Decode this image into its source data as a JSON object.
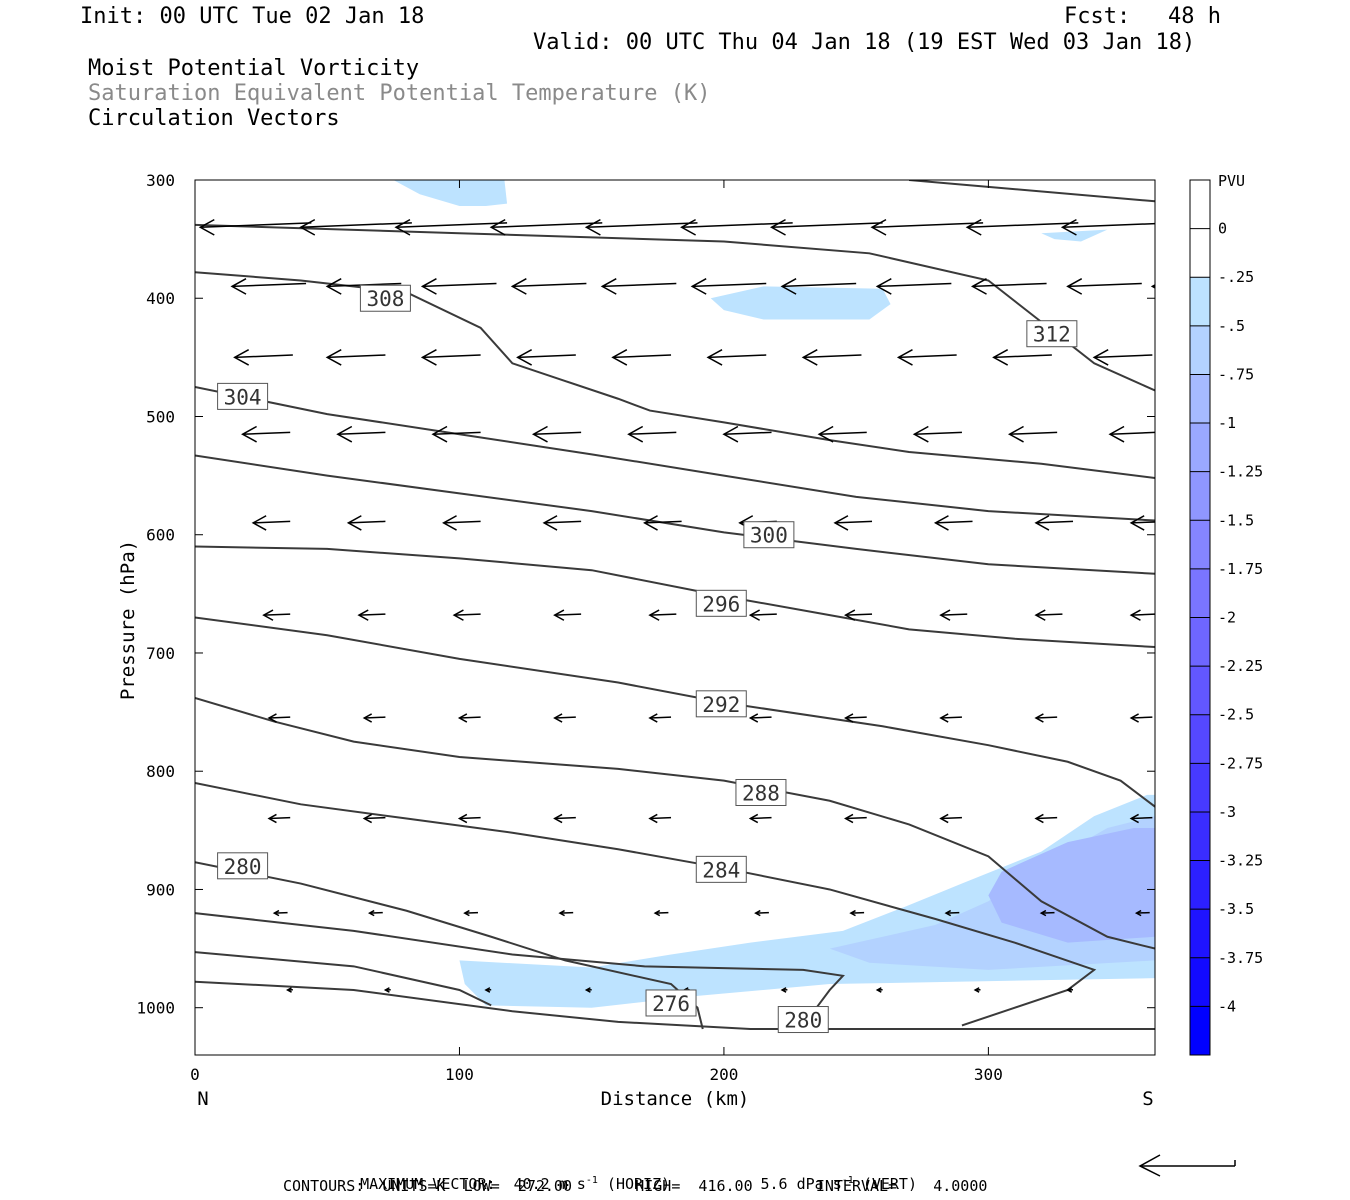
{
  "header": {
    "init": "Init: 00 UTC Tue 02 Jan 18",
    "fcst_label": "Fcst:",
    "fcst_value": "48 h",
    "valid": "Valid: 00 UTC Thu 04 Jan 18 (19 EST Wed 03 Jan 18)",
    "line1": "Moist Potential Vorticity",
    "line2": "Saturation Equivalent Potential Temperature (K)",
    "line3": "Circulation Vectors"
  },
  "footer": {
    "max_vector_label": "MAXIMUM VECTOR:",
    "max_vector_horiz_value": "40.2",
    "max_vector_horiz_unit": "m s",
    "max_vector_horiz_exp": "-1",
    "max_vector_horiz_tag": "(HORIZ)",
    "max_vector_vert_value": "5.6",
    "max_vector_vert_unit": "dPa s",
    "max_vector_vert_exp": "-1",
    "max_vector_vert_tag": "(VERT)",
    "contours": "CONTOURS:  UNITS=K  LOW=  272.00       HIGH=  416.00       INTERVAL=    4.0000"
  },
  "colors": {
    "contour": "#3a3a3a",
    "vector": "#000000",
    "pv_shade_1": "#bde3ff",
    "pv_shade_2": "#b3d2ff",
    "pv_shade_3": "#a6baff",
    "pv_shade_4": "#9aa8ff"
  },
  "chart_data": {
    "type": "cross-section",
    "xlabel": "Distance (km)",
    "ylabel": "Pressure (hPa)",
    "xlim": [
      0,
      363
    ],
    "ylim": [
      300,
      1040
    ],
    "x_ticks": [
      0,
      100,
      200,
      300
    ],
    "y_ticks": [
      300,
      400,
      500,
      600,
      700,
      800,
      900,
      1000
    ],
    "x_end_labels": {
      "left": "N",
      "right": "S"
    },
    "colorbar": {
      "title": "PVU",
      "levels": [
        "0",
        "-.25",
        "-.5",
        "-.75",
        "-1",
        "-1.25",
        "-1.5",
        "-1.75",
        "-2",
        "-2.25",
        "-2.5",
        "-2.75",
        "-3",
        "-3.25",
        "-3.5",
        "-3.75",
        "-4"
      ],
      "colors": [
        "#ffffff",
        "#ffffff",
        "#bde3ff",
        "#b3d2ff",
        "#a6baff",
        "#9aa8ff",
        "#8f96ff",
        "#8585ff",
        "#7a75ff",
        "#6e66ff",
        "#6257ff",
        "#5548ff",
        "#473aff",
        "#3a2dff",
        "#2c20ff",
        "#1f14ff",
        "#120aff",
        "#0000ff"
      ]
    },
    "theta_contours": [
      {
        "level": 312,
        "label": "312",
        "label_at": [
          324,
          430
        ],
        "points": [
          [
            270,
            300
          ],
          [
            363,
            318
          ]
        ]
      },
      {
        "level": 312,
        "label": "",
        "points": [
          [
            0,
            338
          ],
          [
            100,
            345
          ],
          [
            200,
            352
          ],
          [
            255,
            362
          ],
          [
            300,
            385
          ],
          [
            320,
            420
          ],
          [
            340,
            455
          ],
          [
            363,
            478
          ]
        ]
      },
      {
        "level": 308,
        "label": "308",
        "label_at": [
          72,
          400
        ],
        "points": [
          [
            0,
            378
          ],
          [
            40,
            385
          ],
          [
            80,
            395
          ],
          [
            108,
            425
          ],
          [
            120,
            455
          ],
          [
            140,
            470
          ],
          [
            160,
            485
          ],
          [
            172,
            495
          ],
          [
            200,
            505
          ],
          [
            240,
            520
          ],
          [
            270,
            530
          ],
          [
            320,
            540
          ],
          [
            363,
            552
          ]
        ]
      },
      {
        "level": 304,
        "label": "304",
        "label_at": [
          18,
          483
        ],
        "points": [
          [
            0,
            475
          ],
          [
            50,
            498
          ],
          [
            100,
            515
          ],
          [
            150,
            532
          ],
          [
            200,
            550
          ],
          [
            250,
            568
          ],
          [
            300,
            580
          ],
          [
            363,
            588
          ]
        ]
      },
      {
        "level": 300,
        "label": "300",
        "label_at": [
          217,
          600
        ],
        "points": [
          [
            0,
            533
          ],
          [
            50,
            550
          ],
          [
            100,
            565
          ],
          [
            150,
            580
          ],
          [
            200,
            598
          ],
          [
            250,
            612
          ],
          [
            300,
            625
          ],
          [
            363,
            633
          ]
        ]
      },
      {
        "level": 296,
        "label": "296",
        "label_at": [
          199,
          658
        ],
        "points": [
          [
            0,
            610
          ],
          [
            50,
            612
          ],
          [
            100,
            620
          ],
          [
            150,
            630
          ],
          [
            200,
            652
          ],
          [
            240,
            668
          ],
          [
            270,
            680
          ],
          [
            310,
            688
          ],
          [
            363,
            695
          ]
        ]
      },
      {
        "level": 292,
        "label": "292",
        "label_at": [
          199,
          743
        ],
        "points": [
          [
            0,
            670
          ],
          [
            50,
            685
          ],
          [
            100,
            705
          ],
          [
            160,
            725
          ],
          [
            200,
            742
          ],
          [
            260,
            762
          ],
          [
            300,
            778
          ],
          [
            330,
            792
          ],
          [
            350,
            808
          ],
          [
            363,
            830
          ]
        ]
      },
      {
        "level": 288,
        "label": "288",
        "label_at": [
          214,
          818
        ],
        "points": [
          [
            0,
            738
          ],
          [
            30,
            758
          ],
          [
            60,
            775
          ],
          [
            100,
            788
          ],
          [
            160,
            798
          ],
          [
            200,
            808
          ],
          [
            240,
            825
          ],
          [
            270,
            845
          ],
          [
            300,
            872
          ],
          [
            320,
            910
          ],
          [
            345,
            940
          ],
          [
            363,
            950
          ]
        ]
      },
      {
        "level": 284,
        "label": "284",
        "label_at": [
          199,
          883
        ],
        "points": [
          [
            0,
            810
          ],
          [
            40,
            828
          ],
          [
            80,
            840
          ],
          [
            120,
            852
          ],
          [
            160,
            866
          ],
          [
            200,
            882
          ],
          [
            240,
            900
          ],
          [
            280,
            925
          ],
          [
            310,
            945
          ],
          [
            340,
            968
          ],
          [
            330,
            985
          ],
          [
            310,
            1000
          ],
          [
            290,
            1015
          ]
        ]
      },
      {
        "level": 280,
        "label": "280",
        "label_at": [
          18,
          880
        ],
        "points": [
          [
            0,
            877
          ],
          [
            40,
            895
          ],
          [
            80,
            918
          ],
          [
            112,
            940
          ],
          [
            140,
            960
          ],
          [
            180,
            980
          ],
          [
            190,
            1000
          ],
          [
            192,
            1018
          ]
        ]
      },
      {
        "level": 280,
        "label": "",
        "points": [
          [
            0,
            920
          ],
          [
            60,
            935
          ],
          [
            120,
            955
          ],
          [
            170,
            965
          ],
          [
            230,
            968
          ],
          [
            245,
            973
          ],
          [
            240,
            985
          ],
          [
            235,
            1000
          ]
        ]
      },
      {
        "level": 276,
        "label": "276",
        "label_at": [
          180,
          996
        ],
        "points": [
          [
            0,
            953
          ],
          [
            60,
            965
          ],
          [
            100,
            985
          ],
          [
            112,
            998
          ]
        ]
      },
      {
        "level": 272,
        "label": "",
        "points": [
          [
            0,
            978
          ],
          [
            60,
            985
          ],
          [
            120,
            1003
          ],
          [
            160,
            1012
          ],
          [
            210,
            1018
          ],
          [
            363,
            1018
          ]
        ]
      },
      {
        "level": 280,
        "label": "280",
        "label_at": [
          230,
          1010
        ],
        "points": [
          [
            220,
            1018
          ],
          [
            280,
            1018
          ]
        ]
      }
    ],
    "pv_shading": [
      {
        "level": "-.25",
        "points": [
          [
            75,
            300
          ],
          [
            117,
            300
          ],
          [
            118,
            320
          ],
          [
            110,
            322
          ],
          [
            100,
            322
          ],
          [
            85,
            312
          ]
        ]
      },
      {
        "level": "-.25",
        "points": [
          [
            320,
            345
          ],
          [
            345,
            342
          ],
          [
            335,
            352
          ],
          [
            325,
            350
          ]
        ]
      },
      {
        "level": "-.25",
        "points": [
          [
            195,
            400
          ],
          [
            215,
            390
          ],
          [
            260,
            392
          ],
          [
            263,
            405
          ],
          [
            255,
            418
          ],
          [
            215,
            418
          ],
          [
            200,
            410
          ]
        ]
      },
      {
        "level": "-.25",
        "points": [
          [
            100,
            960
          ],
          [
            150,
            966
          ],
          [
            180,
            955
          ],
          [
            210,
            945
          ],
          [
            245,
            935
          ],
          [
            268,
            915
          ],
          [
            290,
            895
          ],
          [
            320,
            868
          ],
          [
            340,
            838
          ],
          [
            360,
            820
          ],
          [
            363,
            820
          ],
          [
            363,
            975
          ],
          [
            240,
            980
          ],
          [
            190,
            990
          ],
          [
            150,
            1000
          ],
          [
            110,
            998
          ],
          [
            102,
            980
          ]
        ]
      },
      {
        "level": "-.5",
        "points": [
          [
            240,
            950
          ],
          [
            280,
            930
          ],
          [
            300,
            910
          ],
          [
            320,
            880
          ],
          [
            345,
            848
          ],
          [
            363,
            838
          ],
          [
            363,
            960
          ],
          [
            300,
            968
          ],
          [
            255,
            962
          ]
        ]
      },
      {
        "level": "-.75",
        "points": [
          [
            300,
            905
          ],
          [
            305,
            885
          ],
          [
            330,
            860
          ],
          [
            355,
            848
          ],
          [
            363,
            848
          ],
          [
            363,
            940
          ],
          [
            330,
            945
          ],
          [
            305,
            928
          ]
        ]
      }
    ],
    "vectors": {
      "rows": [
        {
          "p": 340,
          "xs": [
            2,
            40,
            76,
            112,
            148,
            184,
            218,
            256,
            292,
            328
          ],
          "len_km": 42
        },
        {
          "p": 390,
          "xs": [
            14,
            50,
            86,
            120,
            154,
            188,
            222,
            258,
            294,
            330,
            362
          ],
          "len_km": 28
        },
        {
          "p": 450,
          "xs": [
            15,
            50,
            86,
            122,
            158,
            194,
            230,
            266,
            302,
            340
          ],
          "len_km": 22
        },
        {
          "p": 515,
          "xs": [
            18,
            54,
            90,
            128,
            164,
            200,
            236,
            272,
            308,
            346
          ],
          "len_km": 18
        },
        {
          "p": 590,
          "xs": [
            22,
            58,
            94,
            132,
            170,
            206,
            242,
            280,
            318,
            354
          ],
          "len_km": 14
        },
        {
          "p": 668,
          "xs": [
            26,
            62,
            98,
            136,
            172,
            210,
            246,
            282,
            318,
            354
          ],
          "len_km": 10
        },
        {
          "p": 755,
          "xs": [
            28,
            64,
            100,
            136,
            172,
            210,
            246,
            282,
            318,
            354
          ],
          "len_km": 8
        },
        {
          "p": 840,
          "xs": [
            28,
            64,
            100,
            136,
            172,
            210,
            246,
            282,
            318,
            354
          ],
          "len_km": 8
        },
        {
          "p": 920,
          "xs": [
            30,
            66,
            102,
            138,
            174,
            212,
            248,
            284,
            320,
            356
          ],
          "len_km": 5
        },
        {
          "p": 985,
          "xs": [
            35,
            72,
            110,
            148,
            185,
            222,
            258,
            295,
            330
          ],
          "len_km": 2
        }
      ]
    },
    "reference_vector": {
      "direction": "left",
      "length_px": 96
    }
  }
}
